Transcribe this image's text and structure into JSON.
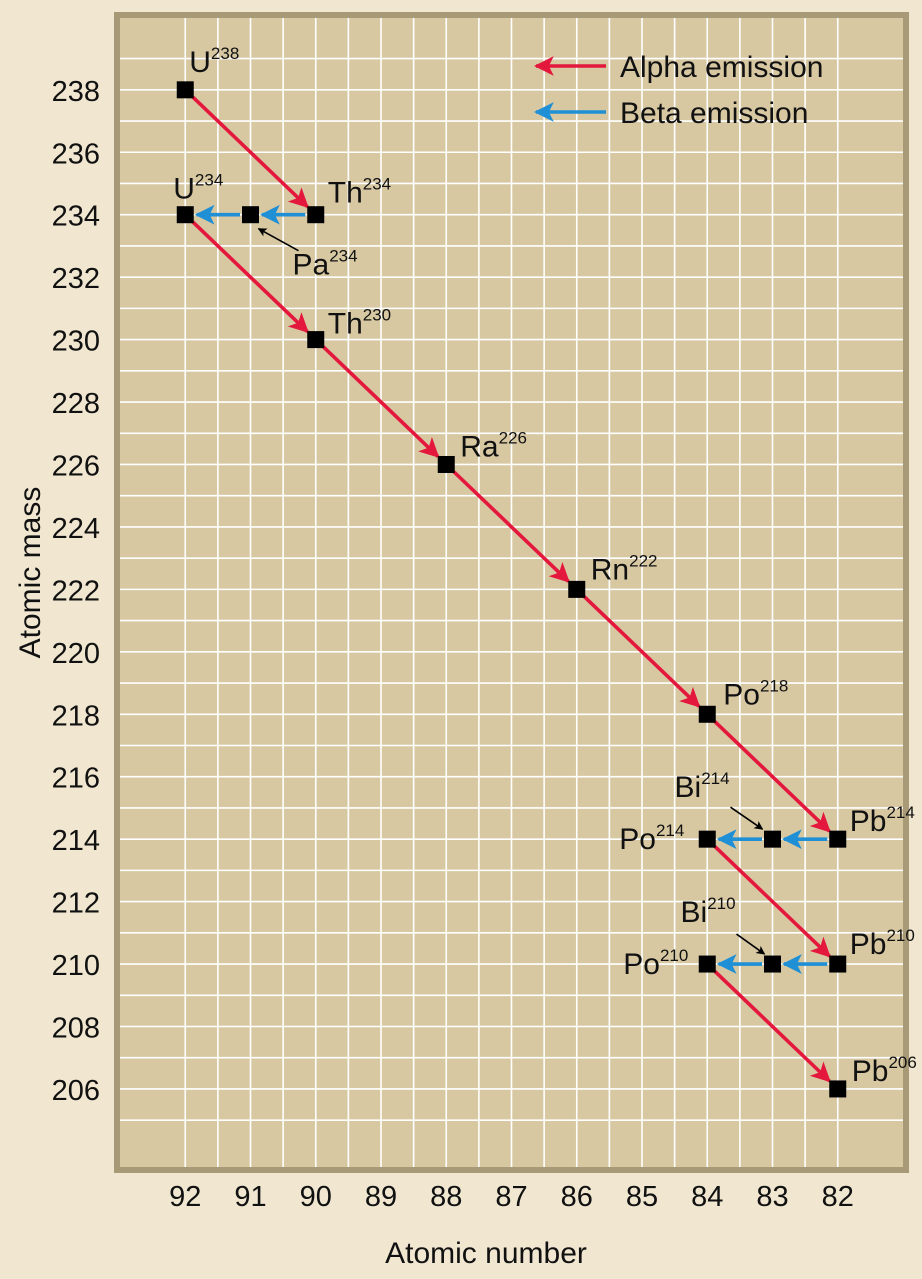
{
  "chart_data": {
    "type": "scatter",
    "xlabel": "Atomic number",
    "ylabel": "Atomic mass",
    "x_ticks": [
      92,
      91,
      90,
      89,
      88,
      87,
      86,
      85,
      84,
      83,
      82
    ],
    "y_ticks": [
      238,
      236,
      234,
      232,
      230,
      228,
      226,
      224,
      222,
      220,
      218,
      216,
      214,
      212,
      210,
      208,
      206
    ],
    "xlim": [
      93,
      81
    ],
    "ylim": [
      203.5,
      240.3
    ],
    "x_reversed": true,
    "grid": true,
    "legend_position": "top-right",
    "legend": [
      {
        "label": "Alpha emission",
        "type": "alpha",
        "color": "#e4173c"
      },
      {
        "label": "Beta emission",
        "type": "beta",
        "color": "#1f8fd6"
      }
    ],
    "colors": {
      "plot_background": "#d7c8a2",
      "frame": "#a89a76",
      "page_background": "#f1e7d1",
      "grid": "#ffffff",
      "point": "#000000",
      "text": "#111111"
    },
    "nuclides": [
      {
        "symbol": "U",
        "mass_label": "238",
        "x": 92,
        "y": 238
      },
      {
        "symbol": "Th",
        "mass_label": "234",
        "x": 90,
        "y": 234
      },
      {
        "symbol": "Pa",
        "mass_label": "234",
        "x": 91,
        "y": 234
      },
      {
        "symbol": "U",
        "mass_label": "234",
        "x": 92,
        "y": 234
      },
      {
        "symbol": "Th",
        "mass_label": "230",
        "x": 90,
        "y": 230
      },
      {
        "symbol": "Ra",
        "mass_label": "226",
        "x": 88,
        "y": 226
      },
      {
        "symbol": "Rn",
        "mass_label": "222",
        "x": 86,
        "y": 222
      },
      {
        "symbol": "Po",
        "mass_label": "218",
        "x": 84,
        "y": 218
      },
      {
        "symbol": "Pb",
        "mass_label": "214",
        "x": 82,
        "y": 214
      },
      {
        "symbol": "Bi",
        "mass_label": "214",
        "x": 83,
        "y": 214
      },
      {
        "symbol": "Po",
        "mass_label": "214",
        "x": 84,
        "y": 214
      },
      {
        "symbol": "Pb",
        "mass_label": "210",
        "x": 82,
        "y": 210
      },
      {
        "symbol": "Bi",
        "mass_label": "210",
        "x": 83,
        "y": 210
      },
      {
        "symbol": "Po",
        "mass_label": "210",
        "x": 84,
        "y": 210
      },
      {
        "symbol": "Pb",
        "mass_label": "206",
        "x": 82,
        "y": 206
      }
    ],
    "transitions": [
      {
        "type": "alpha",
        "from": [
          92,
          238
        ],
        "to": [
          90,
          234
        ]
      },
      {
        "type": "beta",
        "from": [
          90,
          234
        ],
        "to": [
          91,
          234
        ]
      },
      {
        "type": "beta",
        "from": [
          91,
          234
        ],
        "to": [
          92,
          234
        ]
      },
      {
        "type": "alpha",
        "from": [
          92,
          234
        ],
        "to": [
          90,
          230
        ]
      },
      {
        "type": "alpha",
        "from": [
          90,
          230
        ],
        "to": [
          88,
          226
        ]
      },
      {
        "type": "alpha",
        "from": [
          88,
          226
        ],
        "to": [
          86,
          222
        ]
      },
      {
        "type": "alpha",
        "from": [
          86,
          222
        ],
        "to": [
          84,
          218
        ]
      },
      {
        "type": "alpha",
        "from": [
          84,
          218
        ],
        "to": [
          82,
          214
        ]
      },
      {
        "type": "beta",
        "from": [
          82,
          214
        ],
        "to": [
          83,
          214
        ]
      },
      {
        "type": "beta",
        "from": [
          83,
          214
        ],
        "to": [
          84,
          214
        ]
      },
      {
        "type": "alpha",
        "from": [
          84,
          214
        ],
        "to": [
          82,
          210
        ]
      },
      {
        "type": "beta",
        "from": [
          82,
          210
        ],
        "to": [
          83,
          210
        ]
      },
      {
        "type": "beta",
        "from": [
          83,
          210
        ],
        "to": [
          84,
          210
        ]
      },
      {
        "type": "alpha",
        "from": [
          84,
          210
        ],
        "to": [
          82,
          206
        ]
      }
    ]
  }
}
